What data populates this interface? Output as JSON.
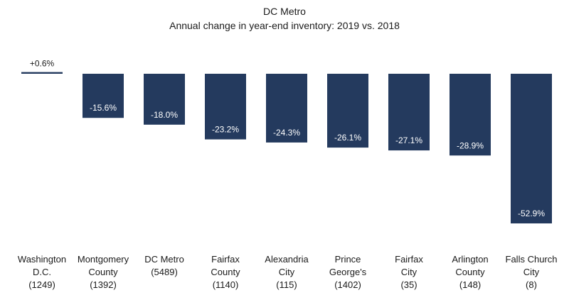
{
  "chart_data": {
    "type": "bar",
    "title": "DC Metro",
    "subtitle": "Annual change in year-end inventory: 2019 vs. 2018",
    "categories": [
      [
        "Washington",
        "D.C.",
        "(1249)"
      ],
      [
        "Montgomery",
        "County",
        "(1392)"
      ],
      [
        "DC Metro",
        "(5489)"
      ],
      [
        "Fairfax",
        "County",
        "(1140)"
      ],
      [
        "Alexandria",
        "City",
        "(115)"
      ],
      [
        "Prince",
        "George's",
        "(1402)"
      ],
      [
        "Fairfax",
        "City",
        "(35)"
      ],
      [
        "Arlington",
        "County",
        "(148)"
      ],
      [
        "Falls Church",
        "City",
        "(8)"
      ]
    ],
    "values": [
      0.6,
      -15.6,
      -18.0,
      -23.2,
      -24.3,
      -26.1,
      -27.1,
      -28.9,
      -52.9
    ],
    "data_labels": [
      "+0.6%",
      "-15.6%",
      "-18.0%",
      "-23.2%",
      "-24.3%",
      "-26.1%",
      "-27.1%",
      "-28.9%",
      "-52.9%"
    ],
    "xlabel": "",
    "ylabel": "",
    "ylim": [
      -52.9,
      0.6
    ],
    "grid": false,
    "legend": "none",
    "colors": {
      "bar": "#243a5e",
      "positive_label": "#1a1a1a",
      "negative_label": "#ffffff"
    }
  }
}
